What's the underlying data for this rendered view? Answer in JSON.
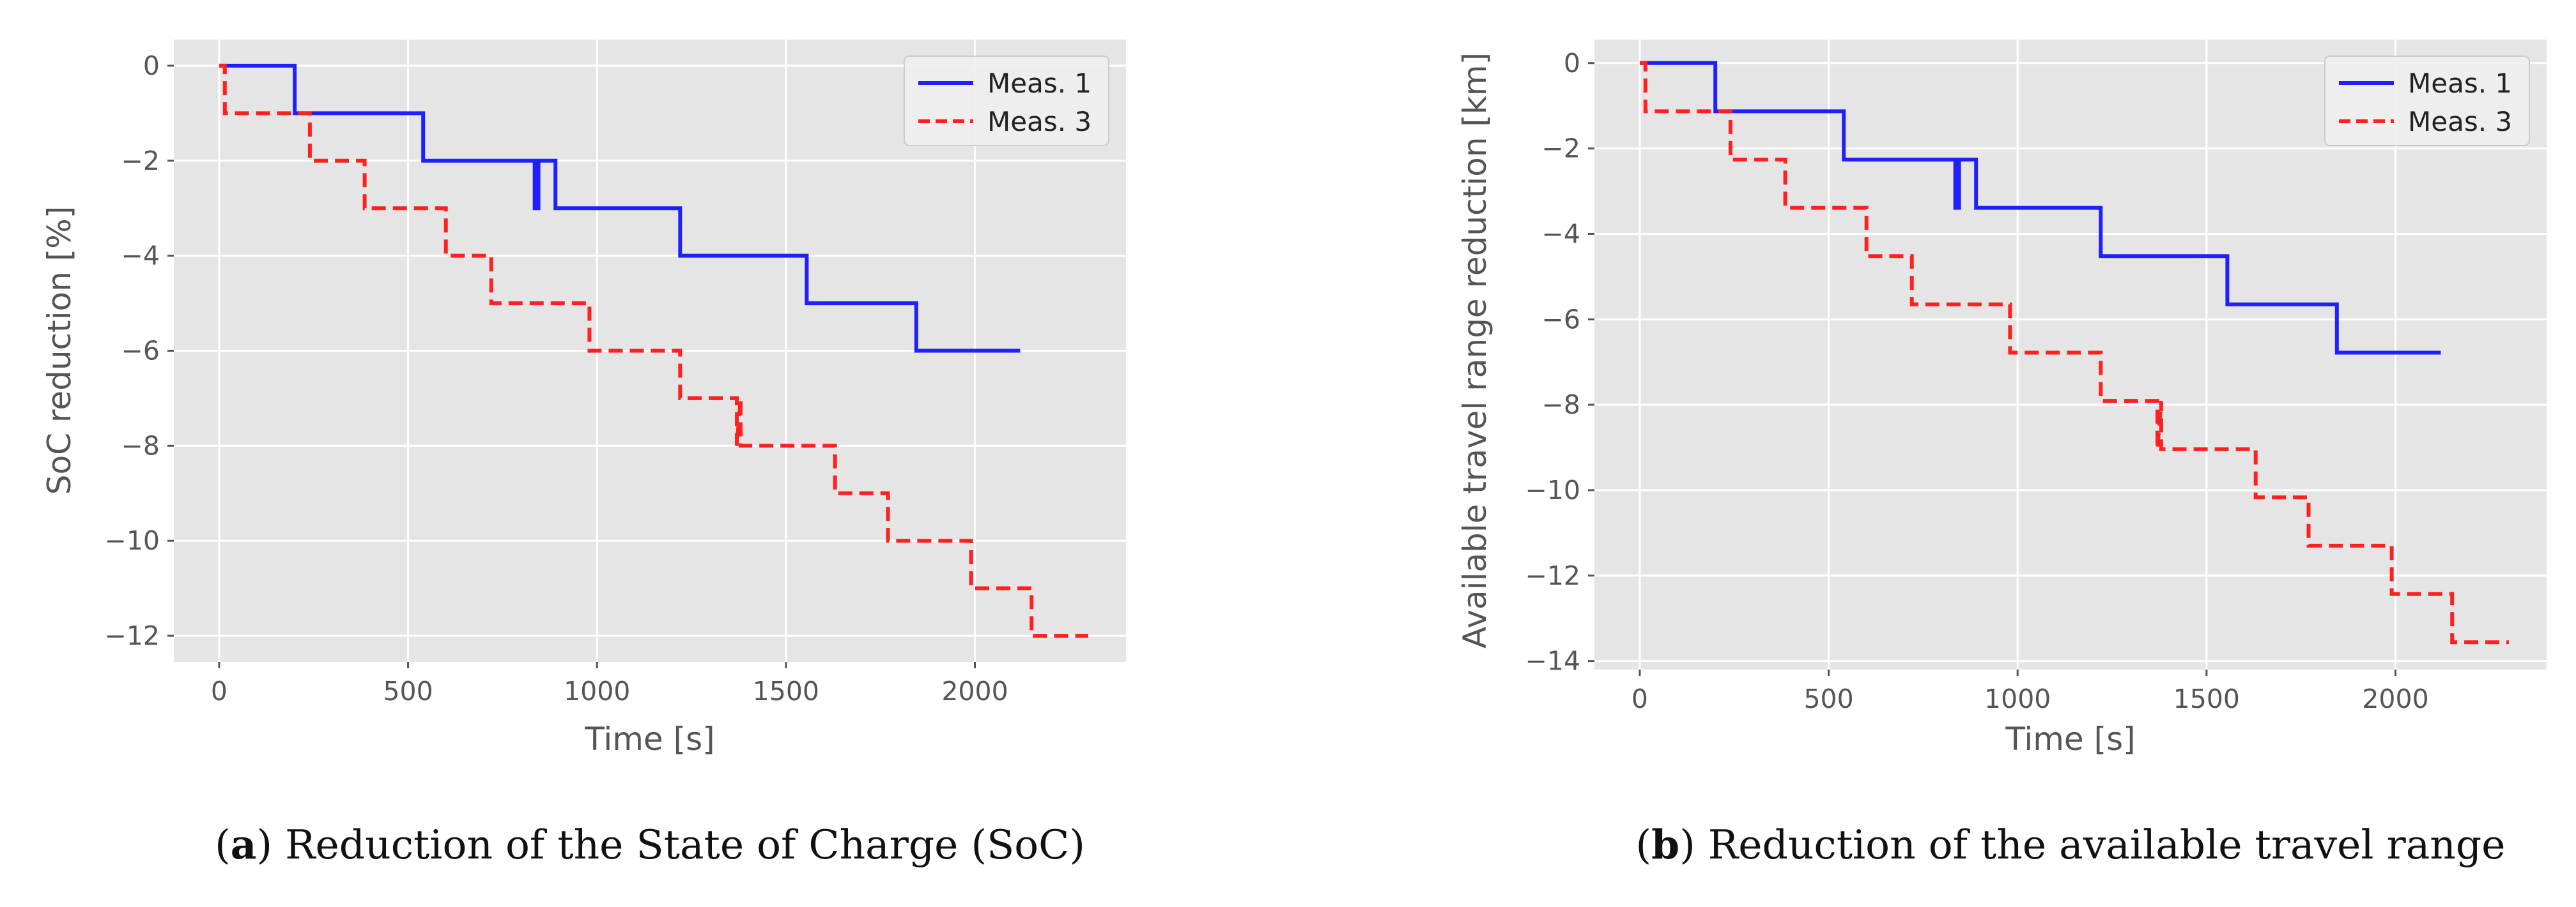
{
  "figure": {
    "colors": {
      "panel_bg": "#e5e5e5",
      "grid": "#ffffff",
      "meas1": "#1f1fff",
      "meas3": "#ff2020",
      "tick_text": "#555555"
    }
  },
  "chart_data": [
    {
      "type": "line",
      "panel": "a",
      "xlabel": "Time [s]",
      "ylabel": "SoC reduction [%]",
      "xlim": [
        -120,
        2400
      ],
      "ylim": [
        -12.55,
        0.55
      ],
      "xticks": [
        0,
        500,
        1000,
        1500,
        2000
      ],
      "xtick_labels": [
        "0",
        "500",
        "1000",
        "1500",
        "2000"
      ],
      "yticks": [
        0,
        -2,
        -4,
        -6,
        -8,
        -10,
        -12
      ],
      "ytick_labels": [
        "0",
        "−2",
        "−4",
        "−6",
        "−8",
        "−10",
        "−12"
      ],
      "grid": true,
      "legend": "top-right",
      "caption_letter": "a",
      "caption_rest": ") Reduction of the State of Charge (SoC)",
      "caption_open": "(",
      "series": [
        {
          "name": "Meas. 1",
          "style": "solid",
          "color": "#1f1fff",
          "x": [
            0,
            200,
            200,
            540,
            540,
            835,
            835,
            845,
            845,
            860,
            860,
            890,
            890,
            1220,
            1220,
            1555,
            1555,
            1845,
            1845,
            2120
          ],
          "y": [
            0,
            0,
            -1,
            -1,
            -2,
            -2,
            -3,
            -3,
            -2,
            -2,
            -2,
            -2,
            -3,
            -3,
            -4,
            -4,
            -5,
            -5,
            -6,
            -6
          ]
        },
        {
          "name": "Meas. 3",
          "style": "dashed",
          "color": "#ff2020",
          "x": [
            0,
            15,
            15,
            240,
            240,
            385,
            385,
            600,
            600,
            720,
            720,
            980,
            980,
            1220,
            1220,
            1370,
            1370,
            1380,
            1380,
            1630,
            1630,
            1770,
            1770,
            1990,
            1990,
            2150,
            2150,
            2300
          ],
          "y": [
            0,
            0,
            -1,
            -1,
            -2,
            -2,
            -3,
            -3,
            -4,
            -4,
            -5,
            -5,
            -6,
            -6,
            -7,
            -7,
            -8,
            -7,
            -8,
            -8,
            -9,
            -9,
            -10,
            -10,
            -11,
            -11,
            -12,
            -12
          ]
        }
      ]
    },
    {
      "type": "line",
      "panel": "b",
      "xlabel": "Time [s]",
      "ylabel": "Available travel range reduction [km]",
      "xlim": [
        -120,
        2400
      ],
      "ylim": [
        -14.2,
        0.55
      ],
      "xticks": [
        0,
        500,
        1000,
        1500,
        2000
      ],
      "xtick_labels": [
        "0",
        "500",
        "1000",
        "1500",
        "2000"
      ],
      "yticks": [
        0,
        -2,
        -4,
        -6,
        -8,
        -10,
        -12,
        -14
      ],
      "ytick_labels": [
        "0",
        "−2",
        "−4",
        "−6",
        "−8",
        "−10",
        "−12",
        "−14"
      ],
      "grid": true,
      "legend": "top-right",
      "caption_letter": "b",
      "caption_rest": ") Reduction of the available travel range",
      "caption_open": "(",
      "series": [
        {
          "name": "Meas. 1",
          "style": "solid",
          "color": "#1f1fff",
          "x": [
            0,
            200,
            200,
            540,
            540,
            835,
            835,
            845,
            845,
            860,
            860,
            890,
            890,
            1220,
            1220,
            1555,
            1555,
            1845,
            1845,
            2120
          ],
          "y": [
            0,
            0,
            -1.13,
            -1.13,
            -2.26,
            -2.26,
            -3.39,
            -3.39,
            -2.26,
            -2.26,
            -2.26,
            -2.26,
            -3.39,
            -3.39,
            -4.52,
            -4.52,
            -5.65,
            -5.65,
            -6.78,
            -6.78
          ]
        },
        {
          "name": "Meas. 3",
          "style": "dashed",
          "color": "#ff2020",
          "x": [
            0,
            15,
            15,
            240,
            240,
            385,
            385,
            600,
            600,
            720,
            720,
            980,
            980,
            1220,
            1220,
            1370,
            1370,
            1380,
            1380,
            1630,
            1630,
            1770,
            1770,
            1990,
            1990,
            2150,
            2150,
            2300
          ],
          "y": [
            0,
            0,
            -1.13,
            -1.13,
            -2.26,
            -2.26,
            -3.39,
            -3.39,
            -4.52,
            -4.52,
            -5.65,
            -5.65,
            -6.78,
            -6.78,
            -7.91,
            -7.91,
            -9.04,
            -7.91,
            -9.04,
            -9.04,
            -10.17,
            -10.17,
            -11.3,
            -11.3,
            -12.43,
            -12.43,
            -13.56,
            -13.56
          ]
        }
      ]
    }
  ]
}
